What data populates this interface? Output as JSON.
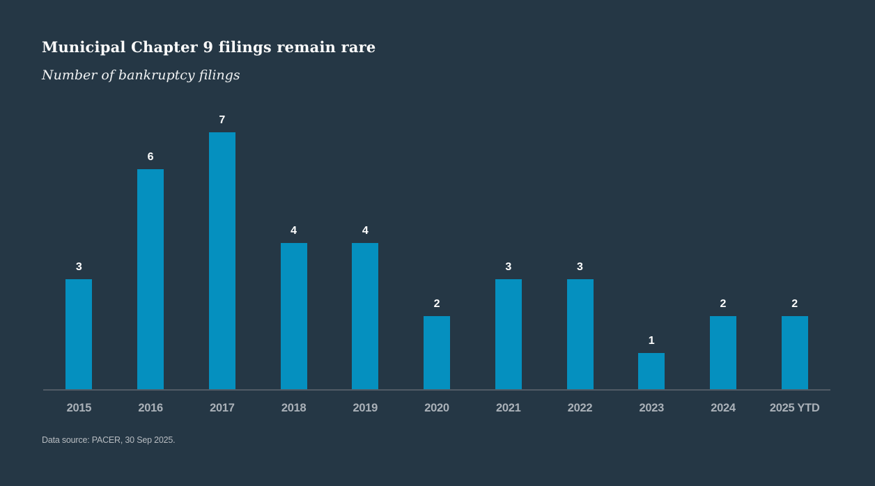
{
  "header": {
    "title": "Municipal Chapter 9 filings remain rare",
    "subtitle": "Number of bankruptcy filings"
  },
  "footer": {
    "source_note": "Data source: PACER, 30 Sep 2025."
  },
  "colors": {
    "background": "#253745",
    "bar": "#0590bf",
    "axis_line": "#515b65",
    "axis_label_text": "#aab1b8",
    "title_text": "#fbfbfb",
    "value_label_text": "#ffffff"
  },
  "chart_data": {
    "type": "bar",
    "title": "Municipal Chapter 9 filings remain rare",
    "subtitle": "Number of bankruptcy filings",
    "categories": [
      "2015",
      "2016",
      "2017",
      "2018",
      "2019",
      "2020",
      "2021",
      "2022",
      "2023",
      "2024",
      "2025 YTD"
    ],
    "values": [
      3,
      6,
      7,
      4,
      4,
      2,
      3,
      3,
      1,
      2,
      2
    ],
    "xlabel": "",
    "ylabel": "Number of bankruptcy filings",
    "ylim": [
      0,
      7
    ],
    "grid": false,
    "legend": false,
    "data_labels": true,
    "bar_color": "#0590bf",
    "source": "Data source: PACER, 30 Sep 2025."
  }
}
